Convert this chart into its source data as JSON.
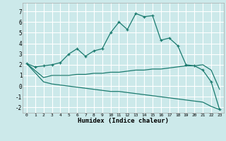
{
  "xlabel": "Humidex (Indice chaleur)",
  "background_color": "#cce9ea",
  "grid_color": "#ffffff",
  "line_color": "#1a7a6e",
  "xlim": [
    -0.5,
    23.5
  ],
  "ylim": [
    -2.5,
    7.8
  ],
  "xticks": [
    0,
    1,
    2,
    3,
    4,
    5,
    6,
    7,
    8,
    9,
    10,
    11,
    12,
    13,
    14,
    15,
    16,
    17,
    18,
    19,
    20,
    21,
    22,
    23
  ],
  "yticks": [
    -2,
    -1,
    0,
    1,
    2,
    3,
    4,
    5,
    6,
    7
  ],
  "curve1_x": [
    0,
    1,
    2,
    3,
    4,
    5,
    6,
    7,
    8,
    9,
    10,
    11,
    12,
    13,
    14,
    15,
    16,
    17,
    18,
    19,
    20,
    21,
    22,
    23
  ],
  "curve1_y": [
    2.1,
    1.8,
    1.9,
    2.0,
    2.2,
    3.0,
    3.5,
    2.8,
    3.3,
    3.5,
    5.0,
    6.0,
    5.3,
    6.8,
    6.5,
    6.6,
    4.3,
    4.5,
    3.8,
    2.0,
    1.9,
    1.5,
    0.4,
    -2.2
  ],
  "curve2_x": [
    0,
    2,
    3,
    4,
    5,
    6,
    7,
    8,
    9,
    10,
    11,
    12,
    13,
    14,
    15,
    16,
    17,
    18,
    19,
    20,
    21,
    22,
    23
  ],
  "curve2_y": [
    2.1,
    0.8,
    1.0,
    1.0,
    1.0,
    1.1,
    1.1,
    1.2,
    1.2,
    1.3,
    1.3,
    1.4,
    1.5,
    1.5,
    1.6,
    1.6,
    1.7,
    1.8,
    1.9,
    1.9,
    2.0,
    1.5,
    -0.3
  ],
  "curve3_x": [
    0,
    2,
    3,
    4,
    5,
    6,
    7,
    8,
    9,
    10,
    11,
    12,
    13,
    14,
    15,
    16,
    17,
    18,
    19,
    20,
    21,
    22,
    23
  ],
  "curve3_y": [
    2.1,
    0.4,
    0.2,
    0.1,
    0.0,
    -0.1,
    -0.2,
    -0.3,
    -0.4,
    -0.5,
    -0.5,
    -0.6,
    -0.7,
    -0.8,
    -0.9,
    -1.0,
    -1.1,
    -1.2,
    -1.3,
    -1.4,
    -1.5,
    -1.9,
    -2.2
  ]
}
